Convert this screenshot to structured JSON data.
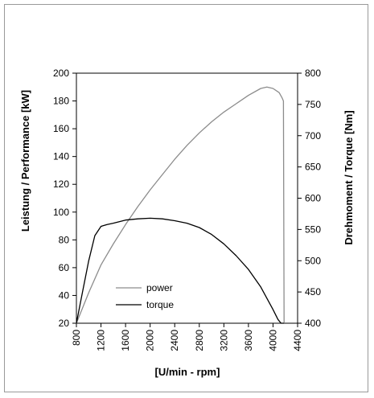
{
  "chart_data": {
    "type": "line",
    "xlabel": "[U/min - rpm]",
    "ylabel_left": "Leistung / Performance [kW]",
    "ylabel_right": "Drehmoment / Torque [Nm]",
    "xlim": [
      800,
      4400
    ],
    "ylim_left": [
      20,
      200
    ],
    "ylim_right": [
      400,
      800
    ],
    "x_ticks": [
      800,
      1200,
      1600,
      2000,
      2400,
      2800,
      3200,
      3600,
      4000,
      4400
    ],
    "y_ticks_left": [
      20,
      40,
      60,
      80,
      100,
      120,
      140,
      160,
      180,
      200
    ],
    "y_ticks_right": [
      400,
      450,
      500,
      550,
      600,
      650,
      700,
      750,
      800
    ],
    "grid": false,
    "legend_position": "lower-left inside",
    "series": [
      {
        "name": "power",
        "axis": "left",
        "color": "#8c8c8c",
        "x": [
          800,
          1000,
          1200,
          1400,
          1600,
          1800,
          2000,
          2200,
          2400,
          2600,
          2800,
          3000,
          3200,
          3400,
          3600,
          3800,
          3900,
          4000,
          4100,
          4150,
          4170,
          4180
        ],
        "y": [
          20,
          42,
          62,
          77,
          91,
          104,
          116,
          127,
          138,
          148,
          157,
          165,
          172,
          178,
          184,
          189,
          190,
          189,
          186,
          182,
          180,
          20
        ]
      },
      {
        "name": "torque",
        "axis": "right",
        "color": "#000000",
        "x": [
          800,
          900,
          1000,
          1100,
          1200,
          1300,
          1400,
          1600,
          1800,
          2000,
          2200,
          2400,
          2600,
          2800,
          3000,
          3200,
          3400,
          3600,
          3800,
          3900,
          4000,
          4080,
          4130,
          4160,
          4180
        ],
        "y": [
          400,
          450,
          500,
          540,
          555,
          558,
          560,
          565,
          567,
          568,
          567,
          564,
          560,
          553,
          542,
          527,
          508,
          486,
          458,
          440,
          422,
          406,
          400,
          400,
          400
        ]
      }
    ]
  }
}
